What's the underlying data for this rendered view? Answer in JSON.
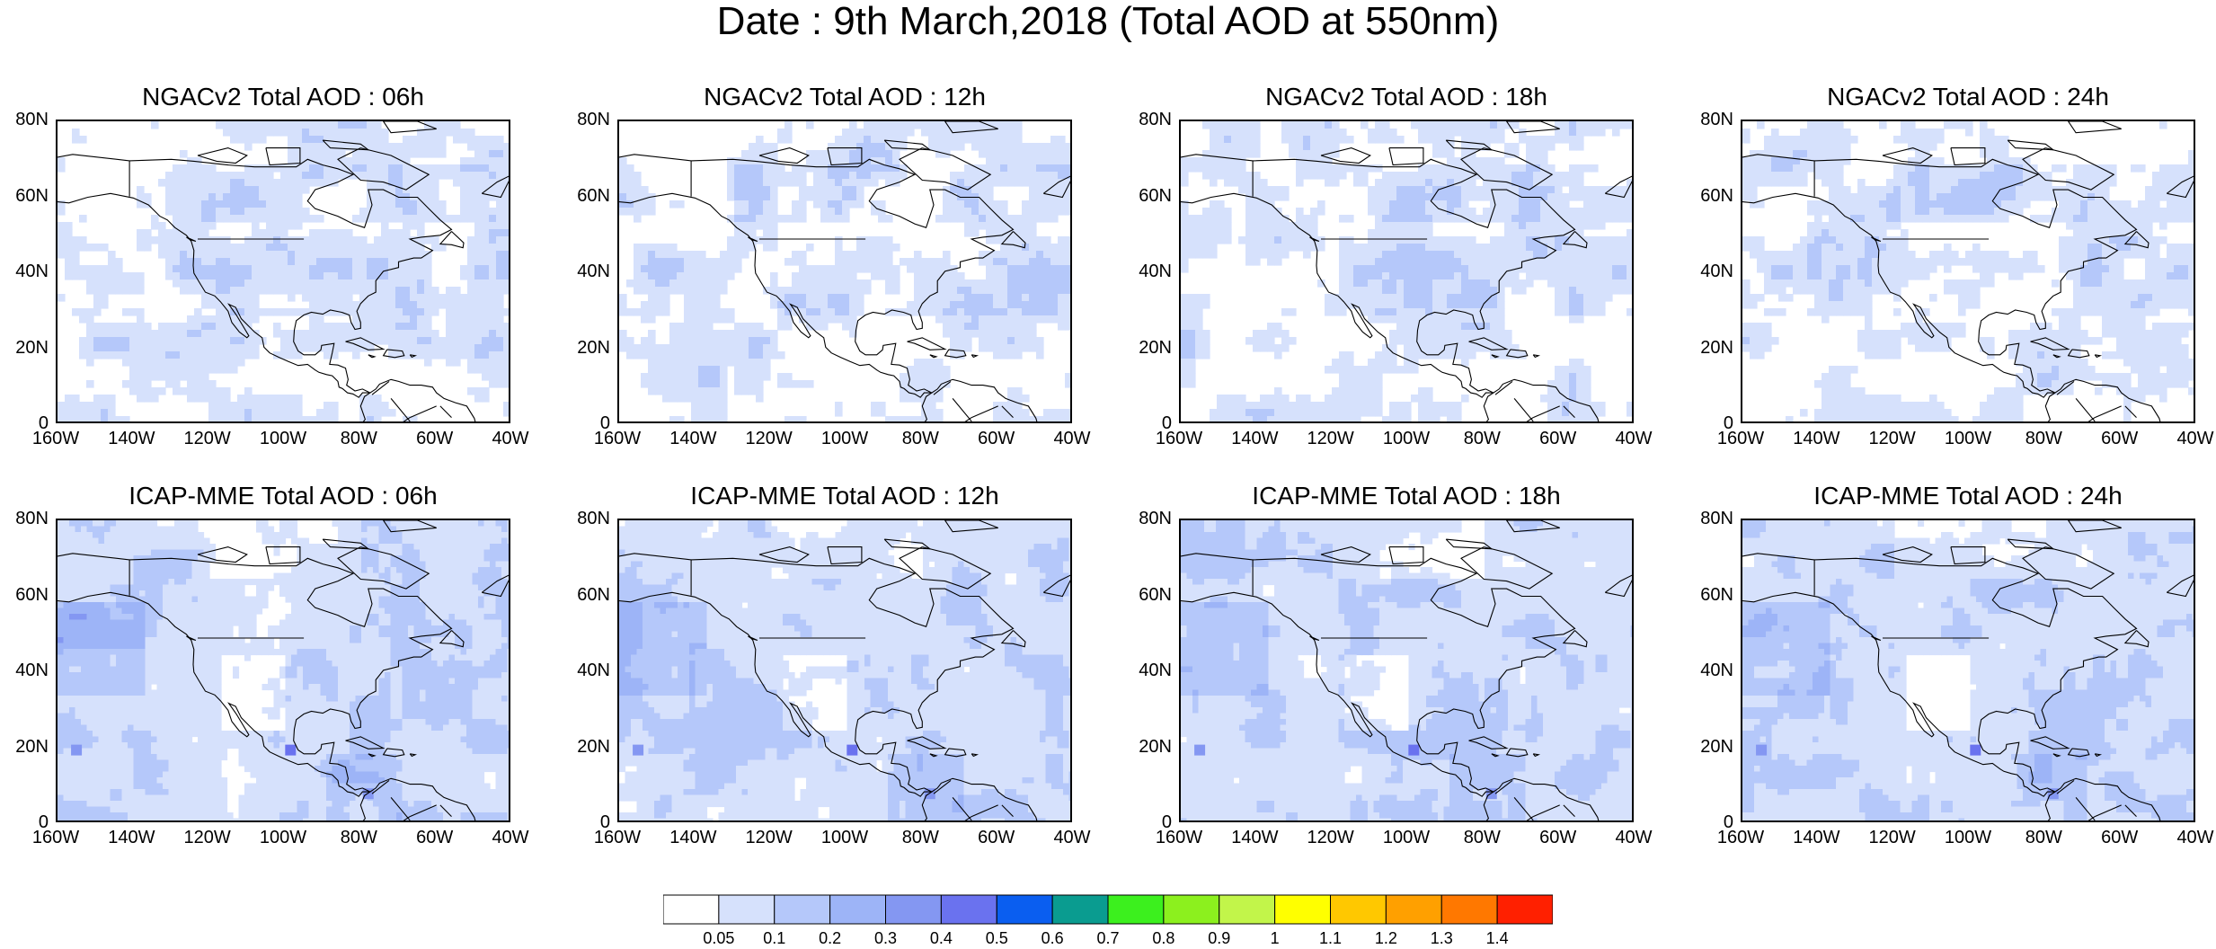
{
  "title": "Date : 9th March,2018 (Total AOD at 550nm)",
  "axes": {
    "y_ticks": [
      "80N",
      "60N",
      "40N",
      "20N",
      "0"
    ],
    "x_ticks": [
      "160W",
      "140W",
      "120W",
      "100W",
      "80W",
      "60W",
      "40W"
    ]
  },
  "panels": [
    {
      "id": "ngac-06",
      "title": "NGACv2 Total AOD : 06h",
      "model": "NGACv2",
      "hour": "06h"
    },
    {
      "id": "ngac-12",
      "title": "NGACv2 Total AOD : 12h",
      "model": "NGACv2",
      "hour": "12h"
    },
    {
      "id": "ngac-18",
      "title": "NGACv2 Total AOD : 18h",
      "model": "NGACv2",
      "hour": "18h"
    },
    {
      "id": "ngac-24",
      "title": "NGACv2 Total AOD : 24h",
      "model": "NGACv2",
      "hour": "24h"
    },
    {
      "id": "icap-06",
      "title": "ICAP-MME Total AOD : 06h",
      "model": "ICAP-MME",
      "hour": "06h"
    },
    {
      "id": "icap-12",
      "title": "ICAP-MME Total AOD : 12h",
      "model": "ICAP-MME",
      "hour": "12h"
    },
    {
      "id": "icap-18",
      "title": "ICAP-MME Total AOD : 18h",
      "model": "ICAP-MME",
      "hour": "18h"
    },
    {
      "id": "icap-24",
      "title": "ICAP-MME Total AOD : 24h",
      "model": "ICAP-MME",
      "hour": "24h"
    }
  ],
  "colorbar": {
    "labels": [
      "0.05",
      "0.1",
      "0.2",
      "0.3",
      "0.4",
      "0.5",
      "0.6",
      "0.7",
      "0.8",
      "0.9",
      "1",
      "1.1",
      "1.2",
      "1.3",
      "1.4"
    ],
    "colors": [
      "#ffffff",
      "#d6e1fc",
      "#b5c8fa",
      "#9db4f7",
      "#8497f2",
      "#6a72ef",
      "#0a5ef0",
      "#0a9c90",
      "#3cf01e",
      "#8cf01e",
      "#c2f54a",
      "#ffff00",
      "#ffc800",
      "#ffa000",
      "#ff7800",
      "#ff2000"
    ]
  }
}
